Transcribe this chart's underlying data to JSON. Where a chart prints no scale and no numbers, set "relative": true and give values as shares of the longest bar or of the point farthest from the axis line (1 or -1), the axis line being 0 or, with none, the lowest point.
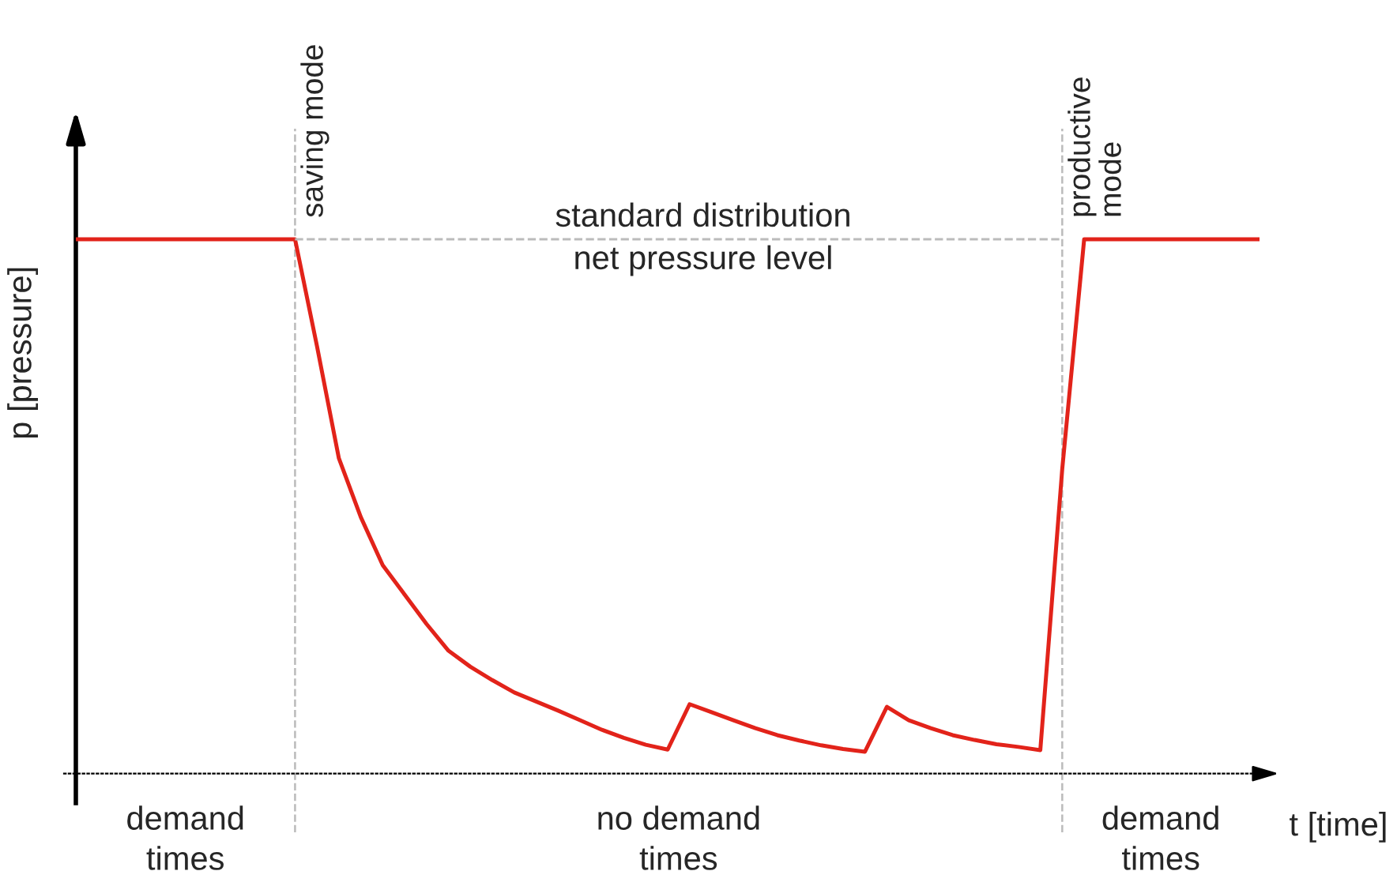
{
  "chart_data": {
    "type": "line",
    "relative": true,
    "ylabel": "p [pressure]",
    "xlabel": "t [time]",
    "categories": [
      null,
      null,
      null,
      null,
      null,
      null,
      null,
      null,
      null,
      null,
      null,
      null,
      null,
      null,
      null,
      null,
      null,
      null,
      null,
      null,
      null,
      null,
      null,
      null,
      null,
      null,
      null,
      null,
      null,
      null,
      null,
      null,
      null,
      null,
      null,
      null,
      null,
      null,
      null,
      null,
      null,
      null,
      null,
      null,
      null,
      null,
      null,
      null,
      null,
      null,
      null,
      null,
      null,
      null,
      null
    ],
    "series": [
      {
        "color": "#e2231a",
        "values": [
          1.0,
          1.0,
          1.0,
          1.0,
          1.0,
          1.0,
          1.0,
          1.0,
          1.0,
          1.0,
          1.0,
          0.8,
          0.59,
          0.48,
          0.39,
          0.335,
          0.28,
          0.23,
          0.2,
          0.175,
          0.152,
          0.135,
          0.118,
          0.1,
          0.082,
          0.067,
          0.054,
          0.045,
          0.13,
          0.115,
          0.1,
          0.085,
          0.072,
          0.062,
          0.053,
          0.046,
          0.041,
          0.125,
          0.1,
          0.085,
          0.072,
          0.063,
          0.055,
          0.05,
          0.044,
          0.57,
          1.0,
          1.0,
          1.0,
          1.0,
          1.0,
          1.0,
          1.0,
          1.0,
          1.0
        ]
      }
    ],
    "ref_lines": [
      {
        "axis": "y",
        "value": 1.0,
        "label": "standard distribution\nnet pressure level",
        "color": "#bbbbbb",
        "line_style": "dashed"
      }
    ],
    "annotations": [
      "saving mode",
      "productive\nmode",
      "demand\ntimes",
      "no demand\ntimes",
      "demand\ntimes"
    ],
    "legend": false,
    "marker": "none",
    "line_style": "solid"
  }
}
